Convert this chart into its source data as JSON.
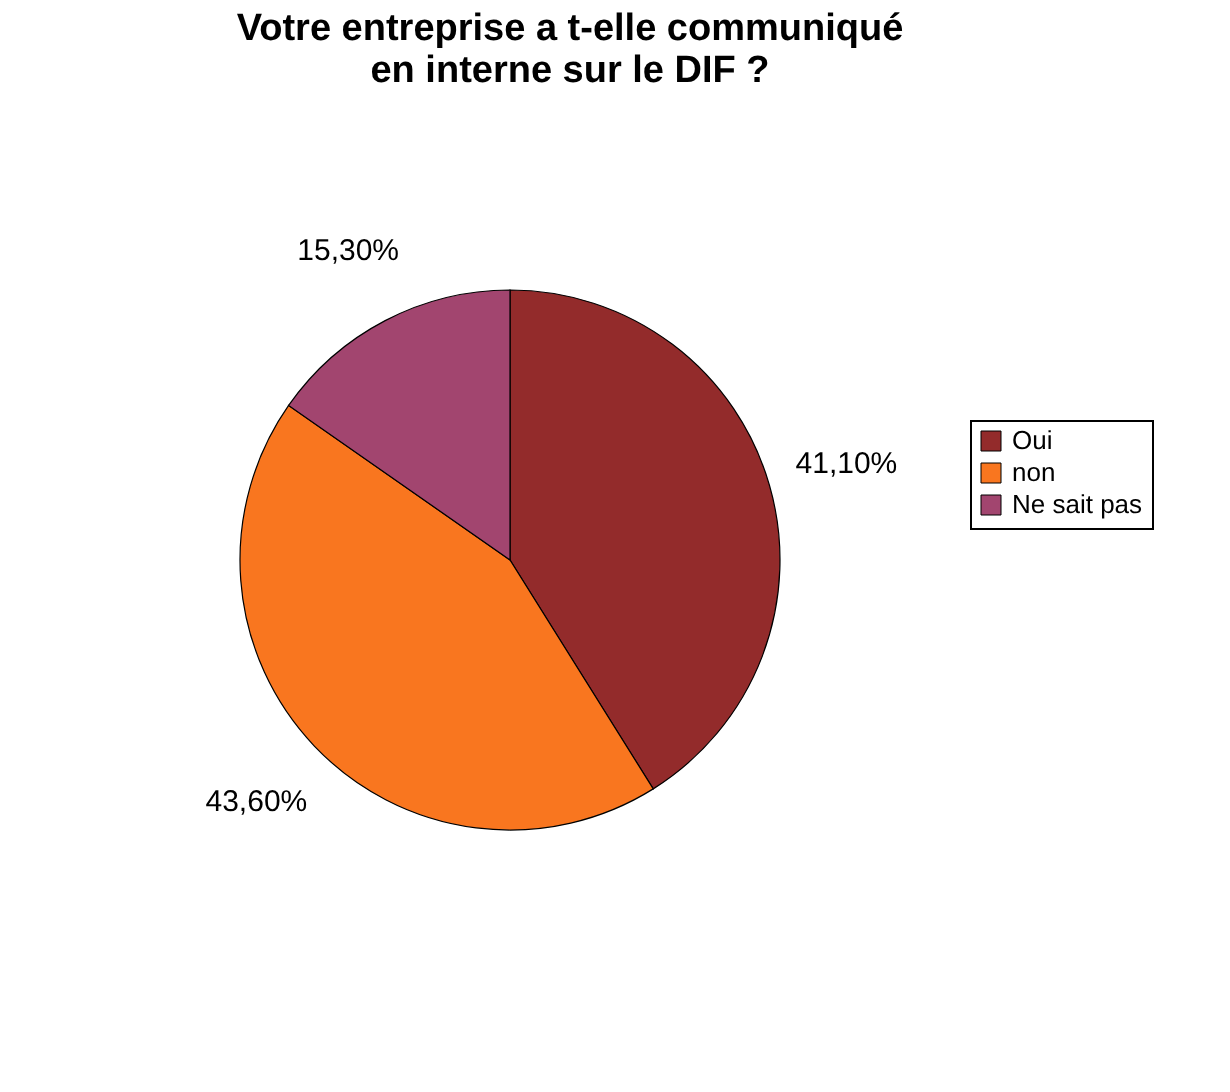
{
  "chart_data": {
    "type": "pie",
    "title": "Votre entreprise a t-elle communiqué\nen interne sur le DIF ?",
    "categories": [
      "Oui",
      "non",
      "Ne sait pas"
    ],
    "values": [
      41.1,
      43.6,
      15.3
    ],
    "value_labels": [
      "41,10%",
      "43,60%",
      "15,30%"
    ],
    "colors": [
      "#932b2b",
      "#f9761f",
      "#a2456f"
    ],
    "legend": "right"
  }
}
